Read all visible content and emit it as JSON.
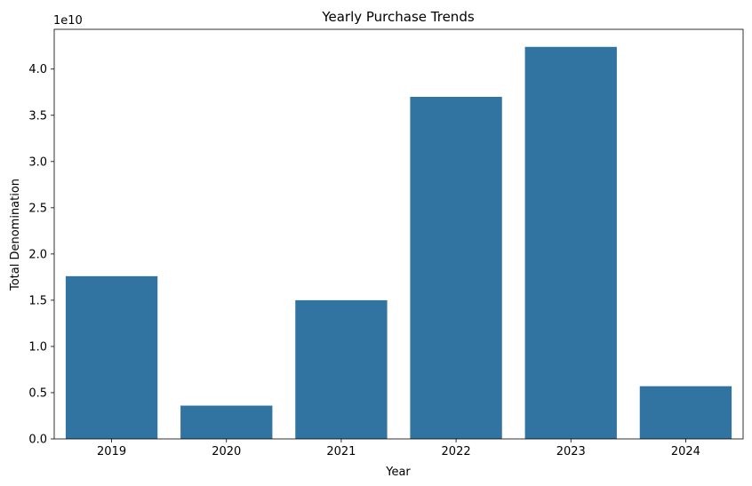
{
  "chart_data": {
    "type": "bar",
    "title": "Yearly Purchase Trends",
    "xlabel": "Year",
    "ylabel": "Total Denomination",
    "scale_label": "1e10",
    "categories": [
      "2019",
      "2020",
      "2021",
      "2022",
      "2023",
      "2024"
    ],
    "values": [
      17.6,
      3.6,
      15.0,
      37.0,
      42.4,
      5.7
    ],
    "value_unit_multiplier": 1000000000.0,
    "ylim": [
      0,
      44.3
    ],
    "y_ticks": [
      0,
      5,
      10,
      15,
      20,
      25,
      30,
      35,
      40
    ],
    "y_tick_labels": [
      "0.0",
      "0.5",
      "1.0",
      "1.5",
      "2.0",
      "2.5",
      "3.0",
      "3.5",
      "4.0"
    ],
    "bar_color": "#3274a1",
    "grid": false,
    "legend": "none"
  }
}
